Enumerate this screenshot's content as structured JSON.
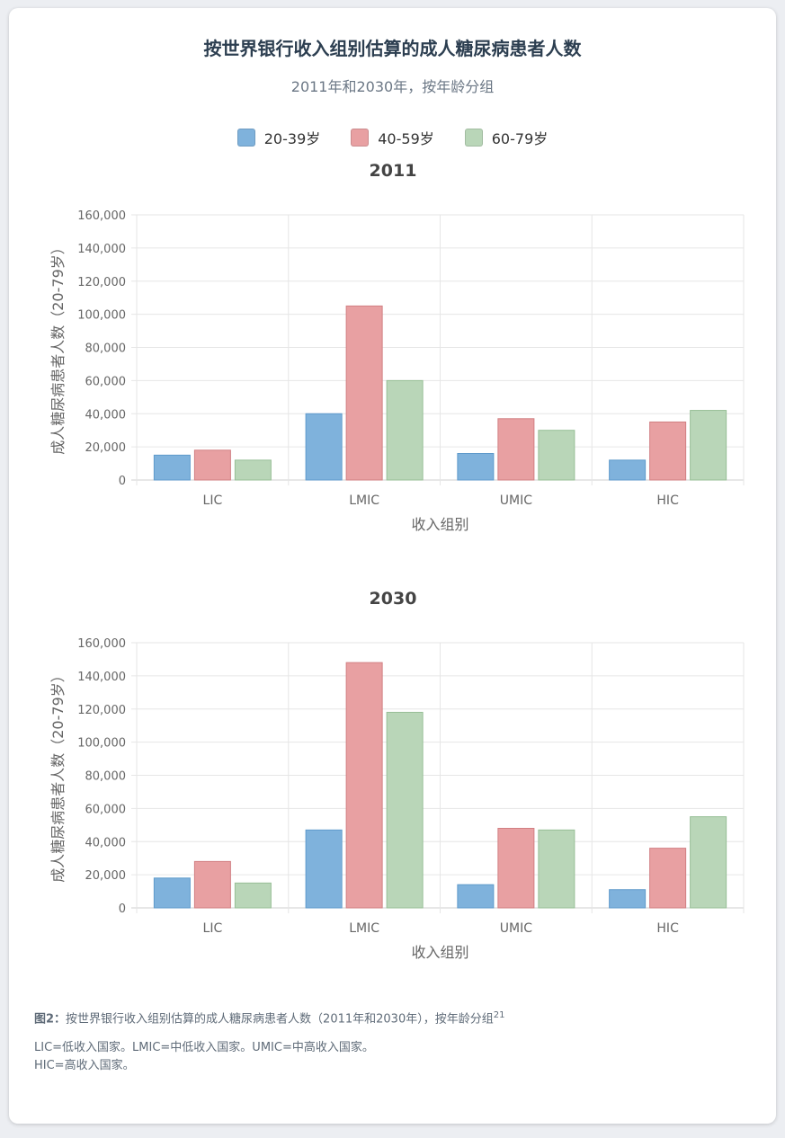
{
  "header": {
    "title": "按世界银行收入组别估算的成人糖尿病患者人数",
    "subtitle": "2011年和2030年，按年龄分组"
  },
  "legend": [
    {
      "label": "20-39岁",
      "color": "#7fb2dc"
    },
    {
      "label": "40-59岁",
      "color": "#e8a0a2"
    },
    {
      "label": "60-79岁",
      "color": "#b9d6b8"
    }
  ],
  "chart_data": [
    {
      "type": "bar",
      "title": "2011",
      "categories": [
        "LIC",
        "LMIC",
        "UMIC",
        "HIC"
      ],
      "series": [
        {
          "name": "20-39岁",
          "values": [
            15000,
            40000,
            16000,
            12000
          ]
        },
        {
          "name": "40-59岁",
          "values": [
            18000,
            105000,
            37000,
            35000
          ]
        },
        {
          "name": "60-79岁",
          "values": [
            12000,
            60000,
            30000,
            42000
          ]
        }
      ],
      "xlabel": "收入组别",
      "ylabel": "成人糖尿病患者人数（20-79岁）",
      "ylim": [
        0,
        160000
      ],
      "yticks": [
        "0",
        "20,000",
        "40,000",
        "60,000",
        "80,000",
        "100,000",
        "120,000",
        "140,000",
        "160,000"
      ],
      "grid": true
    },
    {
      "type": "bar",
      "title": "2030",
      "categories": [
        "LIC",
        "LMIC",
        "UMIC",
        "HIC"
      ],
      "series": [
        {
          "name": "20-39岁",
          "values": [
            18000,
            47000,
            14000,
            11000
          ]
        },
        {
          "name": "40-59岁",
          "values": [
            28000,
            148000,
            48000,
            36000
          ]
        },
        {
          "name": "60-79岁",
          "values": [
            15000,
            118000,
            47000,
            55000
          ]
        }
      ],
      "xlabel": "收入组别",
      "ylabel": "成人糖尿病患者人数（20-79岁）",
      "ylim": [
        0,
        160000
      ],
      "yticks": [
        "0",
        "20,000",
        "40,000",
        "60,000",
        "80,000",
        "100,000",
        "120,000",
        "140,000",
        "160,000"
      ],
      "grid": true
    }
  ],
  "caption": {
    "label": "图2：",
    "text": "按世界银行收入组别估算的成人糖尿病患者人数（2011年和2030年），按年龄分组",
    "ref": "21",
    "notes_line1": "LIC=低收入国家。LMIC=中低收入国家。UMIC=中高收入国家。",
    "notes_line2": "HIC=高收入国家。"
  }
}
